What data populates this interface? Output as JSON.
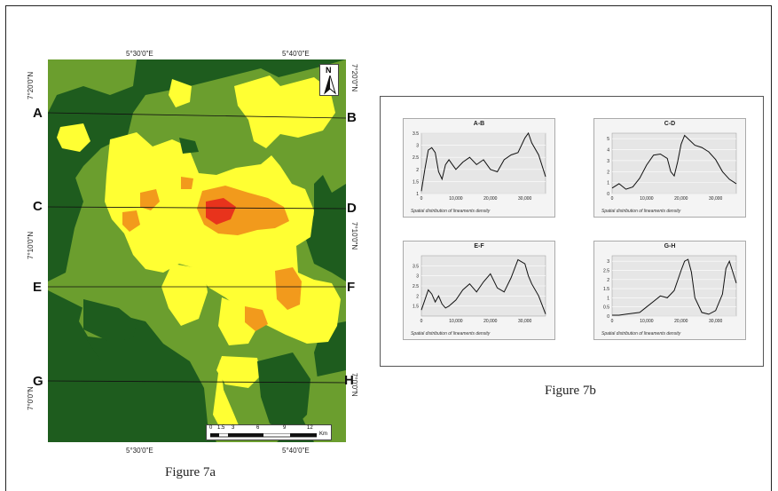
{
  "figure_a": {
    "caption": "Figure 7a",
    "top_coords": [
      "5°30'0\"E",
      "5°40'0\"E"
    ],
    "bottom_coords": [
      "5°30'0\"E",
      "5°40'0\"E"
    ],
    "left_coords": [
      "7°20'0\"N",
      "7°10'0\"N",
      "7°0'0\"N"
    ],
    "right_coords": [
      "7°20'0\"N",
      "7°10'0\"N",
      "7°0'0\"N"
    ],
    "profile_labels": {
      "left": [
        "A",
        "C",
        "E",
        "G"
      ],
      "right": [
        "B",
        "D",
        "F",
        "H"
      ]
    },
    "north_label": "N",
    "scale_ticks": [
      "0",
      "1.5",
      "3",
      "6",
      "9",
      "12"
    ],
    "scale_unit": "Km",
    "colors": {
      "very_low": "#1e5c1e",
      "low": "#6b9e2e",
      "moderate": "#ffff33",
      "high": "#f29a1c",
      "very_high": "#e8331c"
    }
  },
  "figure_b": {
    "caption": "Figure 7b",
    "axis_note": "Spatial distribution of lineaments density",
    "chart_data": [
      {
        "type": "line",
        "title": "A-B",
        "x_ticks": [
          "0",
          "10,000",
          "20,000",
          "30,000"
        ],
        "y_ticks": [
          "1",
          "1.5",
          "2",
          "2.5",
          "3",
          "3.5"
        ],
        "ylim": [
          1,
          3.5
        ],
        "xlim": [
          0,
          36000
        ],
        "series": [
          {
            "x": [
              0,
              1000,
              2000,
              3000,
              4000,
              5000,
              6000,
              7000,
              8000,
              9000,
              10000,
              12000,
              14000,
              16000,
              18000,
              20000,
              22000,
              24000,
              26000,
              28000,
              30000,
              31000,
              32000,
              34000,
              36000
            ],
            "values": [
              1.1,
              2.0,
              2.8,
              2.9,
              2.7,
              1.9,
              1.6,
              2.2,
              2.4,
              2.2,
              2.0,
              2.3,
              2.5,
              2.2,
              2.4,
              2.0,
              1.9,
              2.4,
              2.6,
              2.7,
              3.3,
              3.5,
              3.1,
              2.6,
              1.7
            ]
          }
        ]
      },
      {
        "type": "line",
        "title": "C-D",
        "x_ticks": [
          "0",
          "10,000",
          "20,000",
          "30,000"
        ],
        "y_ticks": [
          "0",
          "1",
          "2",
          "3",
          "4",
          "5"
        ],
        "ylim": [
          0,
          5.5
        ],
        "xlim": [
          0,
          36000
        ],
        "series": [
          {
            "x": [
              0,
              2000,
              4000,
              6000,
              8000,
              10000,
              12000,
              14000,
              16000,
              17000,
              18000,
              19000,
              20000,
              21000,
              22000,
              24000,
              26000,
              28000,
              30000,
              32000,
              34000,
              36000
            ],
            "values": [
              0.5,
              0.9,
              0.4,
              0.6,
              1.4,
              2.6,
              3.5,
              3.6,
              3.2,
              2.0,
              1.6,
              2.9,
              4.5,
              5.3,
              5.0,
              4.4,
              4.2,
              3.8,
              3.1,
              2.0,
              1.3,
              0.9
            ]
          }
        ]
      },
      {
        "type": "line",
        "title": "E-F",
        "x_ticks": [
          "0",
          "10,000",
          "20,000",
          "30,000"
        ],
        "y_ticks": [
          "1.5",
          "2",
          "2.5",
          "3",
          "3.5"
        ],
        "ylim": [
          1,
          4
        ],
        "xlim": [
          0,
          36000
        ],
        "series": [
          {
            "x": [
              0,
              1000,
              2000,
              3000,
              4000,
              5000,
              6000,
              7000,
              8000,
              10000,
              12000,
              14000,
              16000,
              18000,
              20000,
              22000,
              24000,
              26000,
              28000,
              29000,
              30000,
              31000,
              32000,
              34000,
              36000
            ],
            "values": [
              1.3,
              1.8,
              2.3,
              2.1,
              1.7,
              2.0,
              1.6,
              1.4,
              1.5,
              1.8,
              2.3,
              2.6,
              2.2,
              2.7,
              3.1,
              2.4,
              2.2,
              2.9,
              3.8,
              3.7,
              3.6,
              3.0,
              2.6,
              2.0,
              1.1
            ]
          }
        ]
      },
      {
        "type": "line",
        "title": "G-H",
        "x_ticks": [
          "0",
          "10,000",
          "20,000",
          "30,000"
        ],
        "y_ticks": [
          "0",
          "0.5",
          "1",
          "1.5",
          "2",
          "2.5",
          "3"
        ],
        "ylim": [
          0,
          3.3
        ],
        "xlim": [
          0,
          36000
        ],
        "series": [
          {
            "x": [
              0,
              2000,
              4000,
              6000,
              8000,
              10000,
              12000,
              14000,
              16000,
              18000,
              20000,
              21000,
              22000,
              23000,
              24000,
              26000,
              28000,
              30000,
              32000,
              33000,
              34000,
              36000
            ],
            "values": [
              0.05,
              0.05,
              0.1,
              0.15,
              0.2,
              0.5,
              0.8,
              1.1,
              1.0,
              1.4,
              2.5,
              3.0,
              3.1,
              2.4,
              1.0,
              0.2,
              0.1,
              0.3,
              1.2,
              2.6,
              3.0,
              1.8
            ]
          }
        ]
      }
    ]
  }
}
